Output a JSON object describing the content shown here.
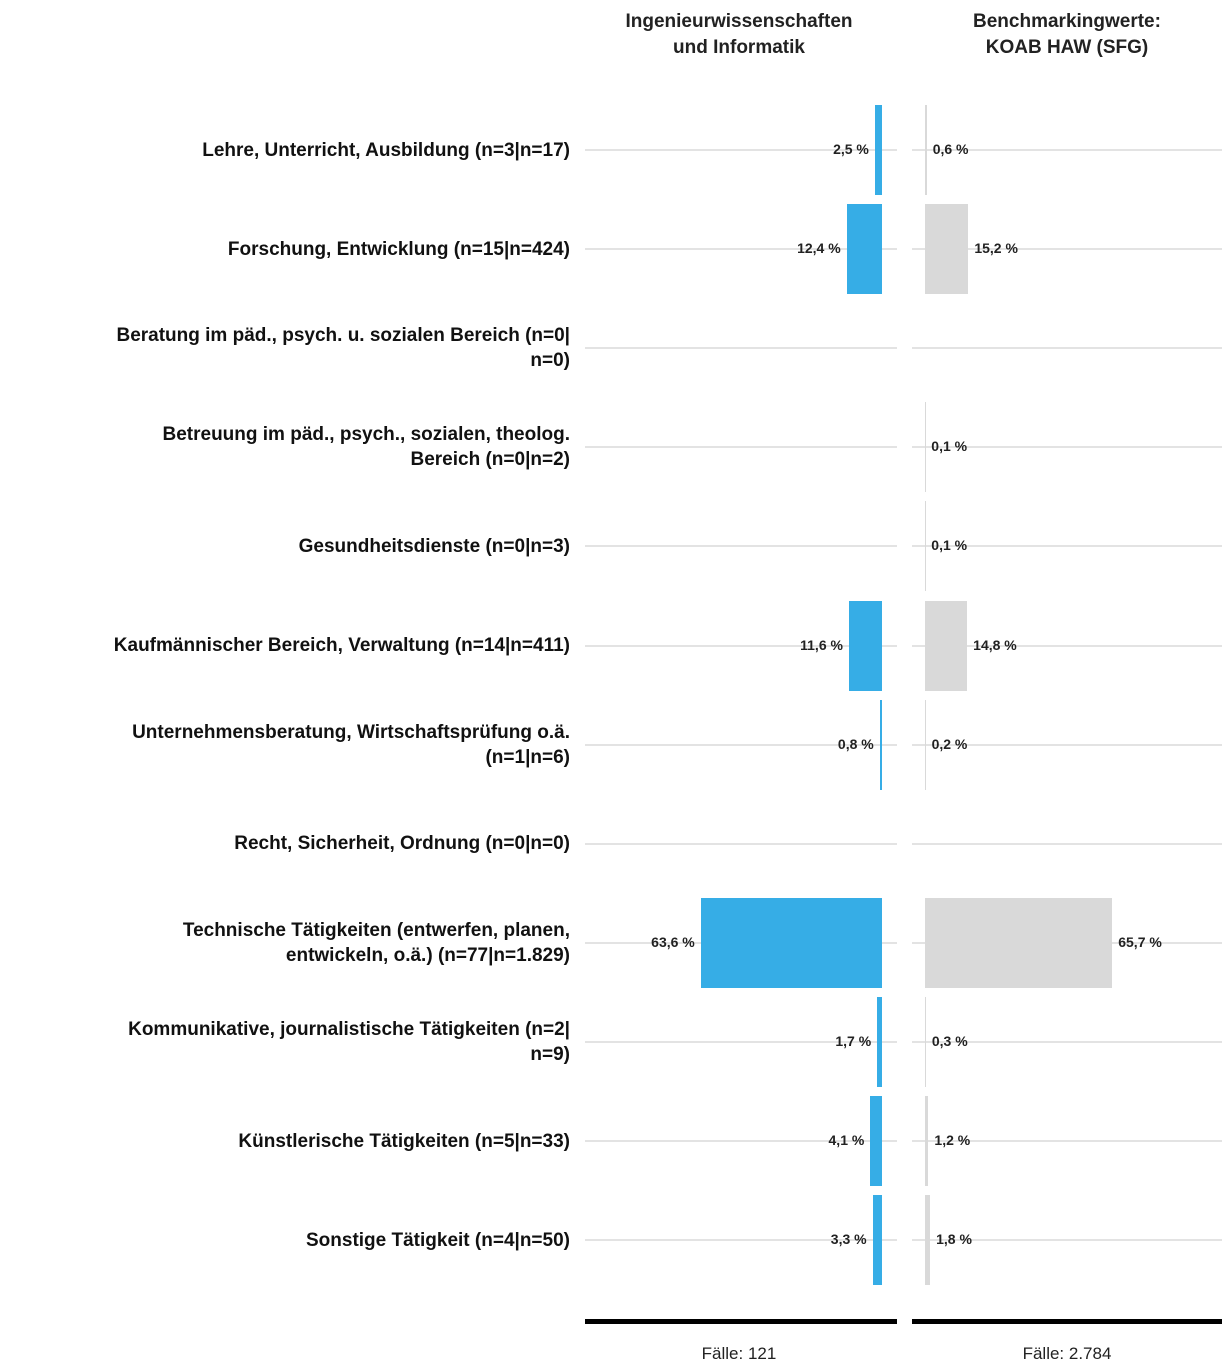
{
  "chart_data": {
    "type": "bar",
    "categories": [
      "Lehre, Unterricht, Ausbildung (n=3|n=17)",
      "Forschung, Entwicklung (n=15|n=424)",
      "Beratung im päd., psych. u. sozialen Bereich (n=0|\nn=0)",
      "Betreuung im päd., psych., sozialen, theolog.\nBereich (n=0|n=2)",
      "Gesundheitsdienste (n=0|n=3)",
      "Kaufmännischer Bereich, Verwaltung (n=14|n=411)",
      "Unternehmensberatung, Wirtschaftsprüfung o.ä.\n(n=1|n=6)",
      "Recht, Sicherheit, Ordnung (n=0|n=0)",
      "Technische Tätigkeiten (entwerfen, planen,\nentwickeln, o.ä.) (n=77|n=1.829)",
      "Kommunikative, journalistische Tätigkeiten (n=2|\nn=9)",
      "Künstlerische Tätigkeiten (n=5|n=33)",
      "Sonstige Tätigkeit (n=4|n=50)"
    ],
    "series": [
      {
        "name": "Ingenieurwissenschaften\nund Informatik",
        "color": "#36ade6",
        "values": [
          2.5,
          12.4,
          null,
          null,
          null,
          11.6,
          0.8,
          null,
          63.6,
          1.7,
          4.1,
          3.3
        ],
        "value_labels": [
          "2,5 %",
          "12,4 %",
          null,
          null,
          null,
          "11,6 %",
          "0,8 %",
          null,
          "63,6 %",
          "1,7 %",
          "4,1 %",
          "3,3 %"
        ],
        "footer": "Fälle: 121"
      },
      {
        "name": "Benchmarkingwerte:\nKOAB HAW (SFG)",
        "color": "#d9d9d9",
        "values": [
          0.6,
          15.2,
          null,
          0.1,
          0.1,
          14.8,
          0.2,
          null,
          65.7,
          0.3,
          1.2,
          1.8
        ],
        "value_labels": [
          "0,6 %",
          "15,2 %",
          null,
          "0,1 %",
          "0,1 %",
          "14,8 %",
          "0,2 %",
          null,
          "65,7 %",
          "0,3 %",
          "1,2 %",
          "1,8 %"
        ],
        "footer": "Fälle: 2.784"
      }
    ]
  }
}
